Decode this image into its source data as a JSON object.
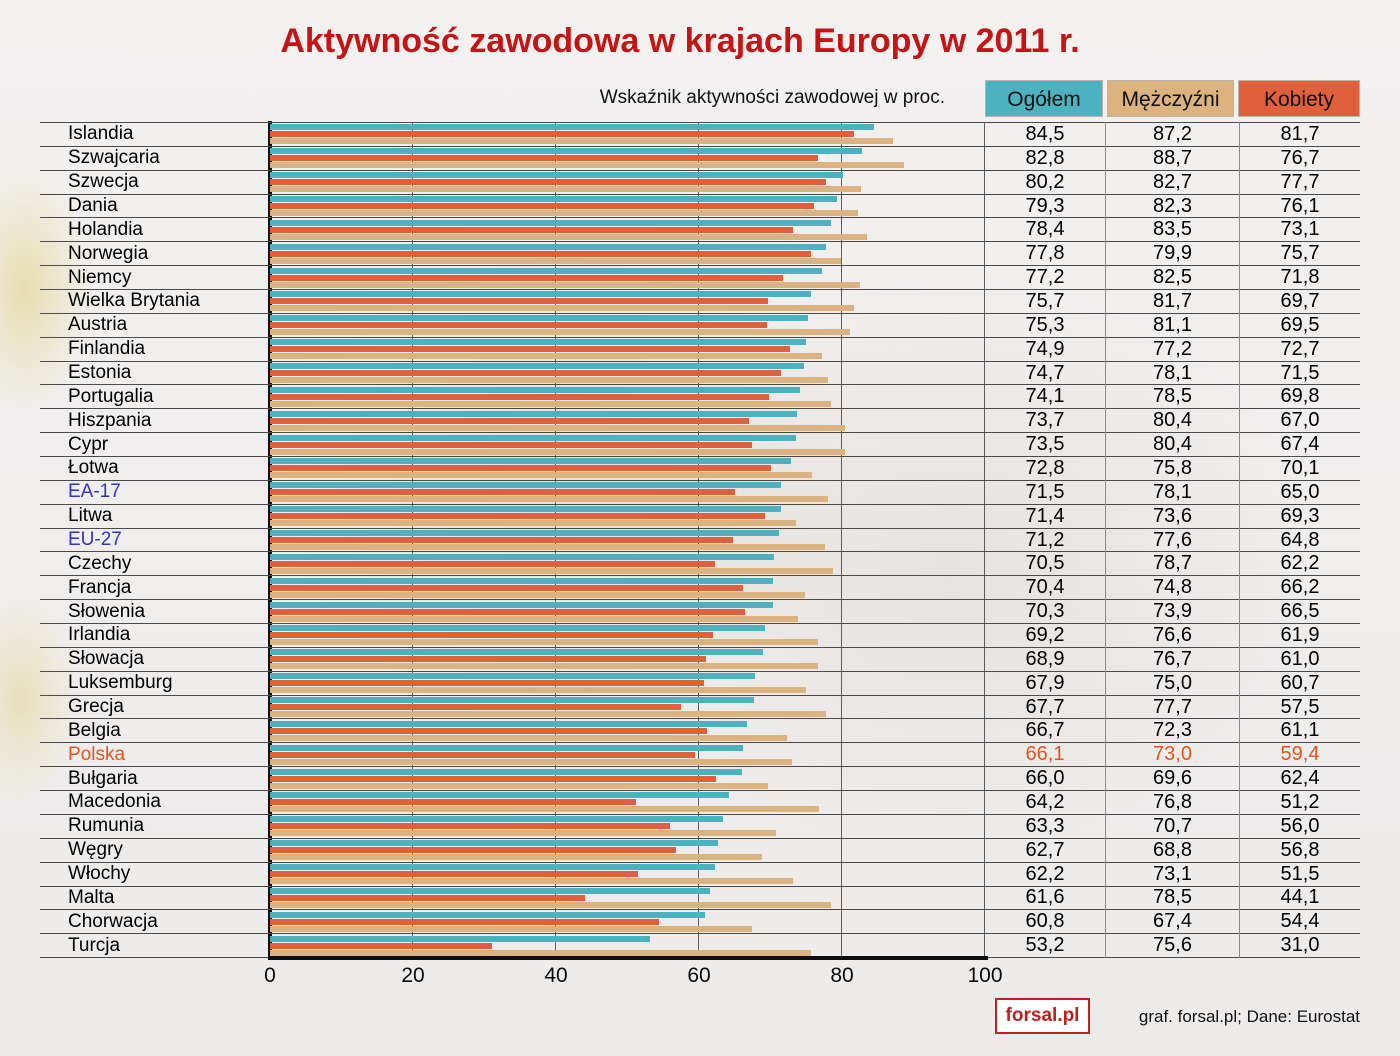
{
  "title": "Aktywność zawodowa w krajach Europy w 2011 r.",
  "subtitle": "Wskaźnik aktywności zawodowej w proc.",
  "legend": {
    "ogolem": "Ogółem",
    "mezczyzni": "Mężczyźni",
    "kobiety": "Kobiety"
  },
  "footer": {
    "logo_text": "forsal.pl",
    "credit": "graf. forsal.pl;  Dane: Eurostat"
  },
  "colors": {
    "ogolem": "#4db2c0",
    "mezczyzni": "#dcb27f",
    "kobiety": "#e0603c",
    "title": "#c41414",
    "highlight": "#e2561b",
    "eu_label": "#3333cc"
  },
  "chart_data": {
    "type": "bar",
    "orientation": "horizontal",
    "title": "Aktywność zawodowa w krajach Europy w 2011 r.",
    "xlabel": "Wskaźnik aktywności zawodowej w proc.",
    "xlim": [
      0,
      100
    ],
    "xticks": [
      0,
      20,
      40,
      60,
      80,
      100
    ],
    "grid": true,
    "series_order": [
      "ogolem",
      "kobiety",
      "mezczyzni"
    ],
    "series_names": {
      "ogolem": "Ogółem",
      "mezczyzni": "Mężczyźni",
      "kobiety": "Kobiety"
    },
    "rows": [
      {
        "label": "Islandia",
        "ogolem": 84.5,
        "mezczyzni": 87.2,
        "kobiety": 81.7
      },
      {
        "label": "Szwajcaria",
        "ogolem": 82.8,
        "mezczyzni": 88.7,
        "kobiety": 76.7
      },
      {
        "label": "Szwecja",
        "ogolem": 80.2,
        "mezczyzni": 82.7,
        "kobiety": 77.7
      },
      {
        "label": "Dania",
        "ogolem": 79.3,
        "mezczyzni": 82.3,
        "kobiety": 76.1
      },
      {
        "label": "Holandia",
        "ogolem": 78.4,
        "mezczyzni": 83.5,
        "kobiety": 73.1
      },
      {
        "label": "Norwegia",
        "ogolem": 77.8,
        "mezczyzni": 79.9,
        "kobiety": 75.7
      },
      {
        "label": "Niemcy",
        "ogolem": 77.2,
        "mezczyzni": 82.5,
        "kobiety": 71.8
      },
      {
        "label": "Wielka Brytania",
        "ogolem": 75.7,
        "mezczyzni": 81.7,
        "kobiety": 69.7
      },
      {
        "label": "Austria",
        "ogolem": 75.3,
        "mezczyzni": 81.1,
        "kobiety": 69.5
      },
      {
        "label": "Finlandia",
        "ogolem": 74.9,
        "mezczyzni": 77.2,
        "kobiety": 72.7
      },
      {
        "label": "Estonia",
        "ogolem": 74.7,
        "mezczyzni": 78.1,
        "kobiety": 71.5
      },
      {
        "label": "Portugalia",
        "ogolem": 74.1,
        "mezczyzni": 78.5,
        "kobiety": 69.8
      },
      {
        "label": "Hiszpania",
        "ogolem": 73.7,
        "mezczyzni": 80.4,
        "kobiety": 67.0
      },
      {
        "label": "Cypr",
        "ogolem": 73.5,
        "mezczyzni": 80.4,
        "kobiety": 67.4
      },
      {
        "label": "Łotwa",
        "ogolem": 72.8,
        "mezczyzni": 75.8,
        "kobiety": 70.1
      },
      {
        "label": "EA-17",
        "eu": true,
        "ogolem": 71.5,
        "mezczyzni": 78.1,
        "kobiety": 65.0
      },
      {
        "label": "Litwa",
        "ogolem": 71.4,
        "mezczyzni": 73.6,
        "kobiety": 69.3
      },
      {
        "label": "EU-27",
        "eu": true,
        "ogolem": 71.2,
        "mezczyzni": 77.6,
        "kobiety": 64.8
      },
      {
        "label": "Czechy",
        "ogolem": 70.5,
        "mezczyzni": 78.7,
        "kobiety": 62.2
      },
      {
        "label": "Francja",
        "ogolem": 70.4,
        "mezczyzni": 74.8,
        "kobiety": 66.2
      },
      {
        "label": "Słowenia",
        "ogolem": 70.3,
        "mezczyzni": 73.9,
        "kobiety": 66.5
      },
      {
        "label": "Irlandia",
        "ogolem": 69.2,
        "mezczyzni": 76.6,
        "kobiety": 61.9
      },
      {
        "label": "Słowacja",
        "ogolem": 68.9,
        "mezczyzni": 76.7,
        "kobiety": 61.0
      },
      {
        "label": "Luksemburg",
        "ogolem": 67.9,
        "mezczyzni": 75.0,
        "kobiety": 60.7
      },
      {
        "label": "Grecja",
        "ogolem": 67.7,
        "mezczyzni": 77.7,
        "kobiety": 57.5
      },
      {
        "label": "Belgia",
        "ogolem": 66.7,
        "mezczyzni": 72.3,
        "kobiety": 61.1
      },
      {
        "label": "Polska",
        "highlight": true,
        "ogolem": 66.1,
        "mezczyzni": 73.0,
        "kobiety": 59.4
      },
      {
        "label": "Bułgaria",
        "ogolem": 66.0,
        "mezczyzni": 69.6,
        "kobiety": 62.4
      },
      {
        "label": "Macedonia",
        "ogolem": 64.2,
        "mezczyzni": 76.8,
        "kobiety": 51.2
      },
      {
        "label": "Rumunia",
        "ogolem": 63.3,
        "mezczyzni": 70.7,
        "kobiety": 56.0
      },
      {
        "label": "Węgry",
        "ogolem": 62.7,
        "mezczyzni": 68.8,
        "kobiety": 56.8
      },
      {
        "label": "Włochy",
        "ogolem": 62.2,
        "mezczyzni": 73.1,
        "kobiety": 51.5
      },
      {
        "label": "Malta",
        "ogolem": 61.6,
        "mezczyzni": 78.5,
        "kobiety": 44.1
      },
      {
        "label": "Chorwacja",
        "ogolem": 60.8,
        "mezczyzni": 67.4,
        "kobiety": 54.4
      },
      {
        "label": "Turcja",
        "ogolem": 53.2,
        "mezczyzni": 75.6,
        "kobiety": 31.0
      }
    ]
  }
}
